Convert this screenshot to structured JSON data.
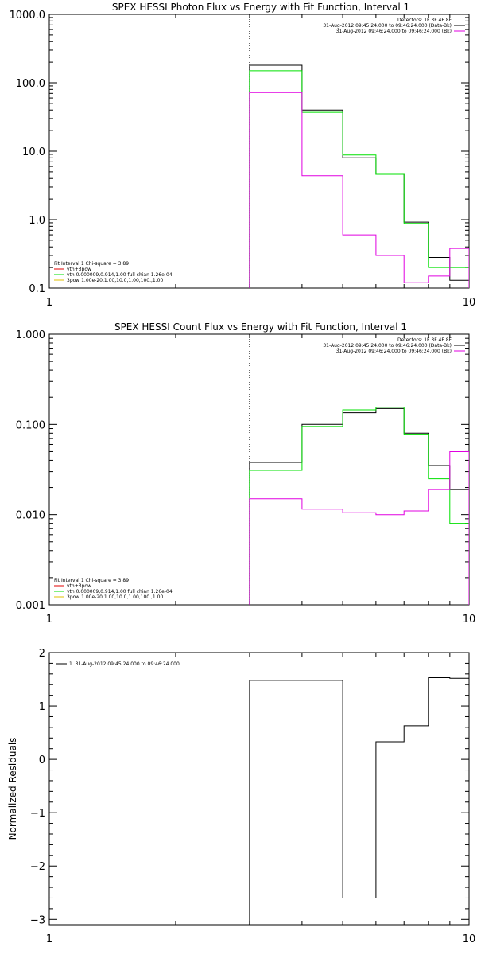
{
  "colors": {
    "black": "#000000",
    "green": "#00e000",
    "magenta": "#e000e0",
    "yellow": "#e0c000",
    "red": "#e00000"
  },
  "chart_data": [
    {
      "type": "line",
      "title": "SPEX HESSI Photon Flux vs Energy with Fit Function, Interval 1",
      "xscale": "log",
      "yscale": "log",
      "xlim": [
        1,
        10
      ],
      "ylim": [
        0.1,
        1000
      ],
      "x_ticks": [
        "1",
        "10"
      ],
      "y_ticks": [
        "0.1",
        "1.0",
        "10.0",
        "100.0",
        "1000.0"
      ],
      "vline_x": 3,
      "bin_edges": [
        3,
        4,
        5,
        6,
        7,
        8,
        9,
        10
      ],
      "legend_top": [
        "Detectors: 1F 3F 4F 8F",
        "31-Aug-2012 09:45:24.000 to 09:46:24.000 (Data-Bk)",
        "31-Aug-2012 09:46:24.000 to 09:46:24.000 (Bk)"
      ],
      "legend_bottom": [
        "Fit Interval 1    Chi-square = 3.89",
        "vth+3pow",
        "vth 0.000009,0.914,1.00  full chian 1.26e-04",
        "3pow 1.00e-20,1.00,10.0,1.00,100.,1.00"
      ],
      "series": [
        {
          "name": "31-Aug-2012 09:45:24.000 to 09:46:24.000 (Data-Bk)",
          "color": "#000000",
          "values": [
            180,
            40,
            8,
            4.6,
            0.92,
            0.28,
            0.13
          ]
        },
        {
          "name": "vth+3pow",
          "color": "#00e000",
          "values": [
            150,
            37,
            8.8,
            4.6,
            0.88,
            0.2,
            0.2
          ]
        },
        {
          "name": "31-Aug-2012 09:46:24.000 to 09:46:24.000 (Bk)",
          "color": "#e000e0",
          "values": [
            72,
            4.4,
            0.6,
            0.3,
            0.12,
            0.15,
            0.38
          ]
        }
      ]
    },
    {
      "type": "line",
      "title": "SPEX HESSI Count Flux vs Energy with Fit Function, Interval 1",
      "xscale": "log",
      "yscale": "log",
      "xlim": [
        1,
        10
      ],
      "ylim": [
        0.001,
        1
      ],
      "x_ticks": [
        "1",
        "10"
      ],
      "y_ticks": [
        "0.001",
        "0.010",
        "0.100",
        "1.000"
      ],
      "vline_x": 3,
      "bin_edges": [
        3,
        4,
        5,
        6,
        7,
        8,
        9,
        10
      ],
      "legend_top": [
        "Detectors: 1F 3F 4F 8F",
        "31-Aug-2012 09:45:24.000 to 09:46:24.000 (Data-Bk)",
        "31-Aug-2012 09:46:24.000 to 09:46:24.000 (Bk)"
      ],
      "legend_bottom": [
        "Fit Interval 1    Chi-square = 3.89",
        "vth+3pow",
        "vth 0.000009,0.914,1.00  full chian 1.26e-04",
        "3pow 1.00e-20,1.00,10.0,1.00,100.,1.00"
      ],
      "series": [
        {
          "name": "31-Aug-2012 09:45:24.000 to 09:46:24.000 (Data-Bk)",
          "color": "#000000",
          "values": [
            0.038,
            0.1,
            0.135,
            0.15,
            0.08,
            0.035,
            0.019
          ]
        },
        {
          "name": "vth+3pow",
          "color": "#00e000",
          "values": [
            0.031,
            0.095,
            0.145,
            0.155,
            0.078,
            0.025,
            0.008
          ]
        },
        {
          "name": "31-Aug-2012 09:46:24.000 to 09:46:24.000 (Bk)",
          "color": "#e000e0",
          "values": [
            0.015,
            0.0115,
            0.0105,
            0.01,
            0.011,
            0.019,
            0.05
          ]
        }
      ]
    },
    {
      "type": "line",
      "title": "",
      "xscale": "log",
      "yscale": "linear",
      "xlim": [
        1,
        10
      ],
      "ylim": [
        -3.1,
        2
      ],
      "ylabel": "Normalized Residuals",
      "x_ticks": [
        "1",
        "10"
      ],
      "y_ticks": [
        "-3",
        "-2",
        "-1",
        "0",
        "1",
        "2"
      ],
      "bin_edges": [
        3,
        4,
        5,
        6,
        7,
        8,
        9,
        10
      ],
      "legend": [
        "1. 31-Aug-2012 09:45:24.000 to 09:46:24.000"
      ],
      "series": [
        {
          "name": "1. 31-Aug-2012 09:45:24.000 to 09:46:24.000",
          "color": "#000000",
          "values": [
            1.48,
            1.48,
            -2.6,
            0.33,
            0.63,
            1.53,
            1.52
          ]
        }
      ]
    }
  ]
}
